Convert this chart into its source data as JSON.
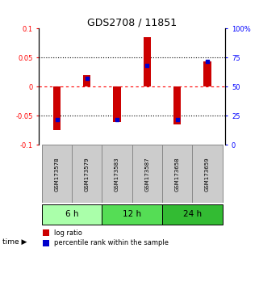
{
  "title": "GDS2708 / 11851",
  "samples": [
    "GSM173578",
    "GSM173579",
    "GSM173583",
    "GSM173587",
    "GSM173658",
    "GSM173659"
  ],
  "log_ratios": [
    -0.075,
    0.02,
    -0.06,
    0.085,
    -0.065,
    0.043
  ],
  "percentile_ranks": [
    22,
    57,
    22,
    68,
    22,
    72
  ],
  "groups": [
    {
      "label": "6 h",
      "indices": [
        0,
        1
      ],
      "color": "#aaffaa"
    },
    {
      "label": "12 h",
      "indices": [
        2,
        3
      ],
      "color": "#55dd55"
    },
    {
      "label": "24 h",
      "indices": [
        4,
        5
      ],
      "color": "#33bb33"
    }
  ],
  "bar_color_red": "#cc0000",
  "bar_color_blue": "#0000cc",
  "ylim_left": [
    -0.1,
    0.1
  ],
  "ylim_right": [
    0,
    100
  ],
  "yticks_left": [
    -0.1,
    -0.05,
    0,
    0.05,
    0.1
  ],
  "yticks_right": [
    0,
    25,
    50,
    75,
    100
  ],
  "ytick_labels_left": [
    "-0.1",
    "-0.05",
    "0",
    "0.05",
    "0.1"
  ],
  "ytick_labels_right": [
    "0",
    "25",
    "50",
    "75",
    "100%"
  ],
  "hlines_dotted": [
    -0.05,
    0.05
  ],
  "hline_dashed": 0,
  "bar_width": 0.25,
  "sample_label_area_color": "#cccccc",
  "sample_label_area_border": "#888888",
  "background_color": "#ffffff"
}
